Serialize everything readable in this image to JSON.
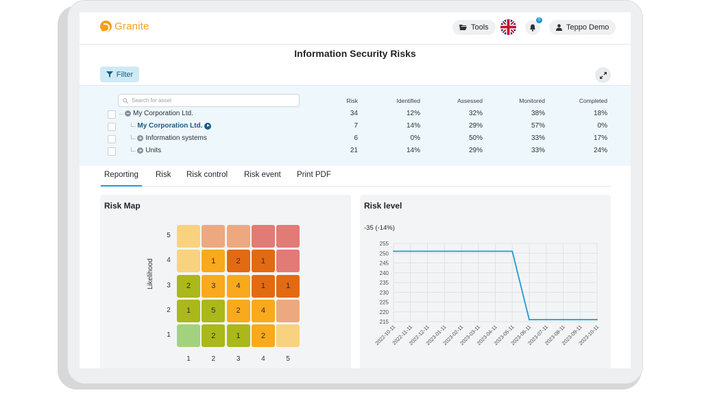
{
  "app": {
    "logo_text": "Granite",
    "brand_color": "#f4a01b",
    "accent_color": "#1e9ad6"
  },
  "header": {
    "tools_label": "Tools",
    "tools_icon": "folder-open-icon",
    "language_icon": "uk-flag-icon",
    "notifications_icon": "bell-icon",
    "notification_count": "0",
    "user_name": "Teppo Demo",
    "user_icon": "user-icon"
  },
  "page": {
    "title": "Information Security Risks"
  },
  "toolbar": {
    "filter_label": "Filter",
    "filter_icon": "filter-icon",
    "expand_icon": "expand-icon"
  },
  "assets": {
    "search_placeholder": "Search for asset",
    "columns": [
      "Risk",
      "Identified",
      "Assessed",
      "Monitored",
      "Completed"
    ],
    "rows": [
      {
        "name": "My Corporation Ltd.",
        "risk": "34",
        "identified": "12%",
        "assessed": "32%",
        "monitored": "38%",
        "completed": "18%"
      },
      {
        "name": "My Corporation Ltd.",
        "risk": "7",
        "identified": "14%",
        "assessed": "29%",
        "monitored": "57%",
        "completed": "0%"
      },
      {
        "name": "Information systems",
        "risk": "6",
        "identified": "0%",
        "assessed": "50%",
        "monitored": "33%",
        "completed": "17%"
      },
      {
        "name": "Units",
        "risk": "21",
        "identified": "14%",
        "assessed": "29%",
        "monitored": "33%",
        "completed": "24%"
      }
    ]
  },
  "tabs": [
    "Reporting",
    "Risk",
    "Risk control",
    "Risk event",
    "Print PDF"
  ],
  "risk_map": {
    "title": "Risk Map",
    "ylabel": "Likelihood",
    "x_ticks": [
      "1",
      "2",
      "3",
      "4",
      "5"
    ],
    "y_ticks": [
      "5",
      "4",
      "3",
      "2",
      "1"
    ],
    "grid": [
      [
        "",
        "",
        "",
        "",
        ""
      ],
      [
        "",
        "1",
        "2",
        "1",
        ""
      ],
      [
        "2",
        "3",
        "4",
        "1",
        "1"
      ],
      [
        "1",
        "5",
        "2",
        "4",
        ""
      ],
      [
        "",
        "2",
        "1",
        "2",
        ""
      ]
    ],
    "colors": [
      [
        "#f9d27f",
        "#eca97f",
        "#eca97f",
        "#e07b76",
        "#e07b76"
      ],
      [
        "#f9d27f",
        "#f8a91c",
        "#e26a12",
        "#e26a12",
        "#e07b76"
      ],
      [
        "#aab819",
        "#f8a91c",
        "#f8a91c",
        "#e26a12",
        "#e26a12"
      ],
      [
        "#aab819",
        "#aab819",
        "#f8a91c",
        "#f8a91c",
        "#eca97f"
      ],
      [
        "#a3d27f",
        "#aab819",
        "#aab819",
        "#f8a91c",
        "#f9d27f"
      ]
    ]
  },
  "chart_data": {
    "type": "line",
    "title": "Risk level",
    "subtitle": "-35 (-14%)",
    "x": [
      "2022-10-11",
      "2022-11-11",
      "2022-12-11",
      "2023-01-11",
      "2023-02-11",
      "2023-03-11",
      "2023-04-11",
      "2023-05-11",
      "2023-06-11",
      "2023-07-11",
      "2023-08-11",
      "2023-09-11",
      "2023-10-11"
    ],
    "series": [
      {
        "values": [
          251,
          251,
          251,
          251,
          251,
          251,
          251,
          251,
          216,
          216,
          216,
          216,
          216
        ],
        "color": "#1e9ad6"
      }
    ],
    "ylim": [
      215,
      255
    ],
    "yticks": [
      215,
      220,
      225,
      230,
      235,
      240,
      245,
      250,
      255
    ],
    "grid": true
  }
}
